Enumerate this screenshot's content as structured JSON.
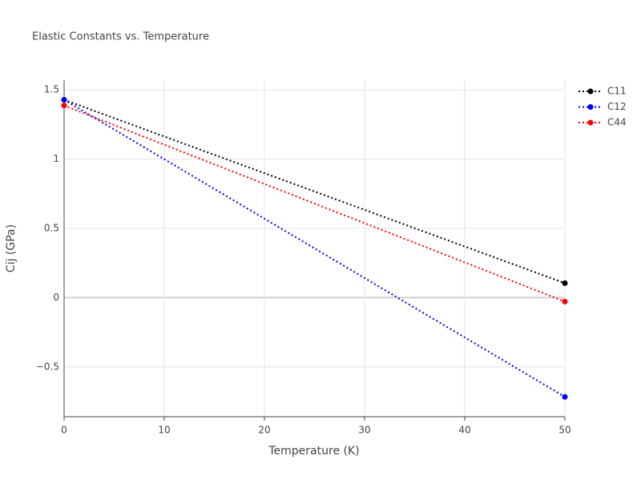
{
  "chart_data": {
    "type": "line",
    "title": "Elastic Constants vs. Temperature",
    "x_label": "Temperature (K)",
    "y_label": "Cij (GPa)",
    "x": [
      0,
      50
    ],
    "series": [
      {
        "name": "C11",
        "color": "#000000",
        "values": [
          1.428,
          0.104
        ]
      },
      {
        "name": "C12",
        "color": "#0000ff",
        "values": [
          1.428,
          -0.717
        ]
      },
      {
        "name": "C44",
        "color": "#ff0000",
        "values": [
          1.387,
          -0.029
        ]
      }
    ],
    "xlim": [
      0,
      50
    ],
    "xticks": [
      0,
      10,
      20,
      30,
      40,
      50
    ],
    "ylim": [
      -0.86,
      1.57
    ],
    "yticks": [
      {
        "value": -0.5,
        "label": "−0.5"
      },
      0,
      0.5,
      1,
      1.5
    ],
    "grid": true,
    "legend": "top-right",
    "line_style": "dotted"
  }
}
